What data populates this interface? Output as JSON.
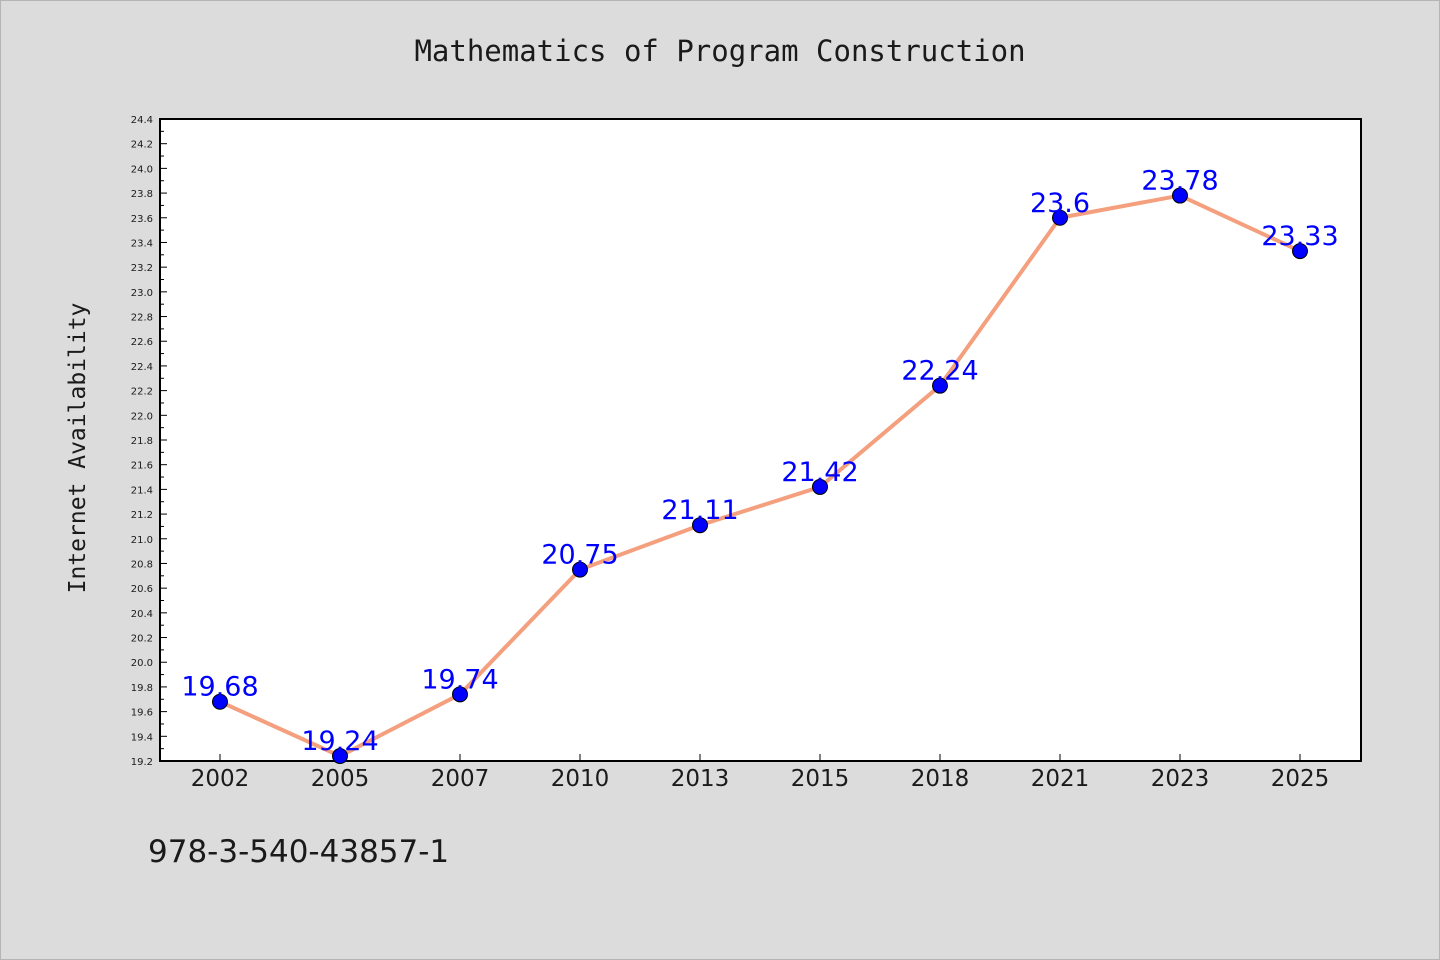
{
  "page": {
    "title": "Mathematics of Program Construction",
    "footer_code": "978-3-540-43857-1"
  },
  "chart_data": {
    "type": "line",
    "title": "Mathematics of Program Construction",
    "xlabel": "",
    "ylabel": "Internet Availability",
    "categories": [
      "2002",
      "2005",
      "2007",
      "2010",
      "2013",
      "2015",
      "2018",
      "2021",
      "2023",
      "2025"
    ],
    "series": [
      {
        "values": [
          19.68,
          19.24,
          19.74,
          20.75,
          21.11,
          21.42,
          22.24,
          23.6,
          23.78,
          23.33
        ]
      }
    ],
    "data_labels": [
      "19.68",
      "19.24",
      "19.74",
      "20.75",
      "21.11",
      "21.42",
      "22.24",
      "23.6",
      "23.78",
      "23.33"
    ],
    "ylim": [
      19.2,
      24.4
    ],
    "yticks": [
      "19.2",
      "19.4",
      "19.6",
      "19.8",
      "20.0",
      "20.2",
      "20.4",
      "20.6",
      "20.8",
      "21.0",
      "21.2",
      "21.4",
      "21.6",
      "21.8",
      "22.0",
      "22.2",
      "22.4",
      "22.6",
      "22.8",
      "23.0",
      "23.2",
      "23.4",
      "23.6",
      "23.8",
      "24.0",
      "24.2",
      "24.4"
    ],
    "grid": false,
    "colors": {
      "line": "#f4a07e",
      "marker": "#0000ff",
      "label": "#0000ff",
      "plot_background": "#ffffff",
      "page_background": "#dcdcdc"
    }
  }
}
